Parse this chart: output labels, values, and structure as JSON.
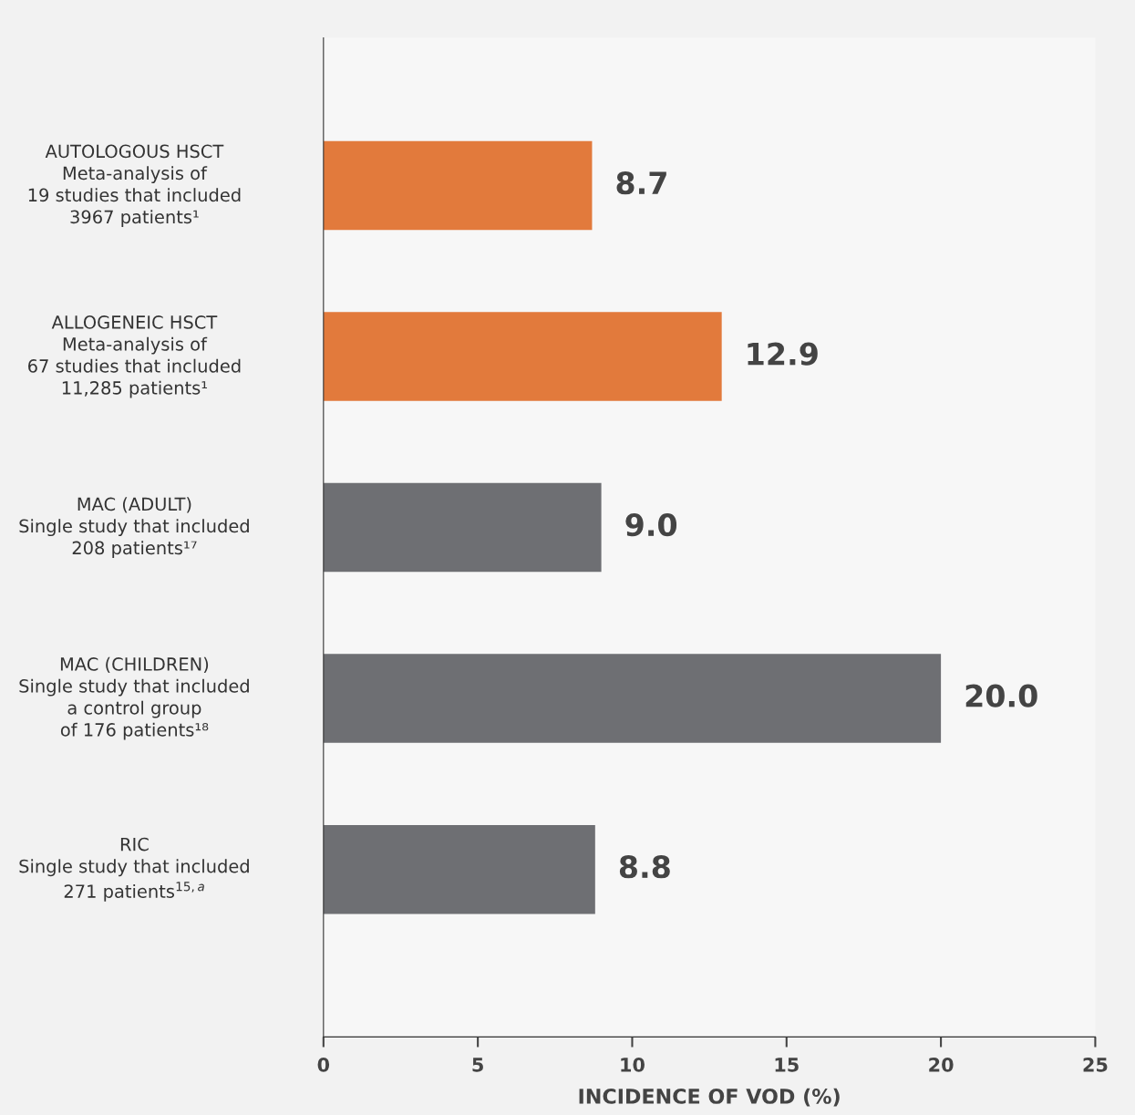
{
  "chart_data": {
    "type": "bar",
    "orientation": "horizontal",
    "categories": [
      "AUTOLOGOUS HSCT\nMeta-analysis of\n19 studies that included\n3967 patients¹",
      "ALLOGENEIC HSCT\nMeta-analysis of\n67 studies that included\n11,285 patients¹",
      "MAC (ADULT)\nSingle study that included\n208 patients¹⁷",
      "MAC (CHILDREN)\nSingle study that included\na control group\nof 176 patients¹⁸",
      "RIC\nSingle study that included\n271 patients$^{15,a}$"
    ],
    "values": [
      8.7,
      12.9,
      9.0,
      20.0,
      8.8
    ],
    "value_labels": [
      "8.7",
      "12.9",
      "9.0",
      "20.0",
      "8.8"
    ],
    "colors": [
      "#e27a3c",
      "#e27a3c",
      "#6e6f73",
      "#6e6f73",
      "#6e6f73"
    ],
    "xlim": [
      0,
      25
    ],
    "xticks": [
      0,
      5,
      10,
      15,
      20,
      25
    ],
    "xlabel": "INCIDENCE OF VOD (%)",
    "grid": false,
    "legend": false
  }
}
